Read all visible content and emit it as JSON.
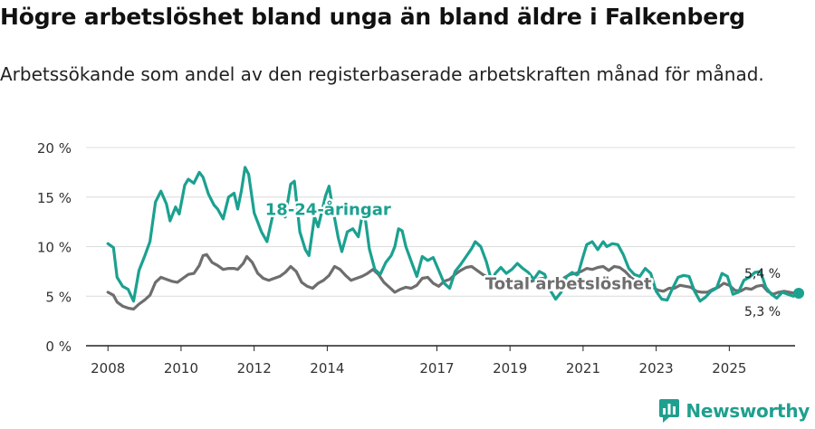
{
  "title": "Högre arbetslöshet bland unga än bland äldre i Falkenberg",
  "subtitle": "Arbetssökande som andel av den registerbaserade arbetskraften månad för månad.",
  "brand": {
    "name": "Newsworthy",
    "icon": "newsworthy-logo-icon",
    "color": "#1f9f8f"
  },
  "chart_data": {
    "type": "line",
    "title": "",
    "xlabel": "",
    "ylabel": "",
    "ylim": [
      0,
      20
    ],
    "xlim": [
      2007.4,
      2026.8
    ],
    "yticks": [
      0,
      5,
      10,
      15,
      20
    ],
    "ytick_labels": [
      "0 %",
      "5 %",
      "10 %",
      "15 %",
      "20 %"
    ],
    "xticks": [
      2008,
      2010,
      2012,
      2014,
      2017,
      2019,
      2021,
      2023,
      2025
    ],
    "xtick_labels": [
      "2008",
      "2010",
      "2012",
      "2014",
      "2017",
      "2019",
      "2021",
      "2023",
      "2025"
    ],
    "grid": "horizontal",
    "series": [
      {
        "name": "18-24-åringar",
        "label": "18-24-åringar",
        "color": "#1ba190",
        "end_label": "5,3 %",
        "points": [
          [
            2008.0,
            10.3
          ],
          [
            2008.15,
            9.9
          ],
          [
            2008.25,
            6.9
          ],
          [
            2008.4,
            6.0
          ],
          [
            2008.55,
            5.7
          ],
          [
            2008.7,
            4.5
          ],
          [
            2008.85,
            7.6
          ],
          [
            2009.0,
            9.0
          ],
          [
            2009.15,
            10.5
          ],
          [
            2009.3,
            14.5
          ],
          [
            2009.45,
            15.6
          ],
          [
            2009.6,
            14.3
          ],
          [
            2009.7,
            12.6
          ],
          [
            2009.85,
            14.0
          ],
          [
            2009.95,
            13.3
          ],
          [
            2010.1,
            16.2
          ],
          [
            2010.2,
            16.8
          ],
          [
            2010.35,
            16.4
          ],
          [
            2010.5,
            17.5
          ],
          [
            2010.6,
            17.0
          ],
          [
            2010.75,
            15.3
          ],
          [
            2010.9,
            14.2
          ],
          [
            2011.0,
            13.8
          ],
          [
            2011.15,
            12.8
          ],
          [
            2011.3,
            15.0
          ],
          [
            2011.45,
            15.4
          ],
          [
            2011.55,
            13.8
          ],
          [
            2011.65,
            15.6
          ],
          [
            2011.75,
            18.0
          ],
          [
            2011.85,
            17.3
          ],
          [
            2012.0,
            13.4
          ],
          [
            2012.2,
            11.5
          ],
          [
            2012.35,
            10.5
          ],
          [
            2012.5,
            13.0
          ],
          [
            2012.6,
            13.4
          ],
          [
            2012.75,
            13.3
          ],
          [
            2012.85,
            13.0
          ],
          [
            2013.0,
            16.3
          ],
          [
            2013.1,
            16.6
          ],
          [
            2013.25,
            11.5
          ],
          [
            2013.4,
            9.7
          ],
          [
            2013.5,
            9.1
          ],
          [
            2013.65,
            13.0
          ],
          [
            2013.75,
            12.0
          ],
          [
            2013.85,
            13.5
          ],
          [
            2013.95,
            15.1
          ],
          [
            2014.05,
            16.1
          ],
          [
            2014.15,
            13.9
          ],
          [
            2014.3,
            10.9
          ],
          [
            2014.4,
            9.5
          ],
          [
            2014.55,
            11.5
          ],
          [
            2014.7,
            11.8
          ],
          [
            2014.85,
            11.0
          ],
          [
            2015.0,
            14.0
          ],
          [
            2015.15,
            9.8
          ],
          [
            2015.3,
            7.7
          ],
          [
            2015.45,
            7.2
          ],
          [
            2015.6,
            8.4
          ],
          [
            2015.75,
            9.1
          ],
          [
            2015.85,
            10.0
          ],
          [
            2015.95,
            11.8
          ],
          [
            2016.05,
            11.6
          ],
          [
            2016.15,
            10.0
          ],
          [
            2016.3,
            8.5
          ],
          [
            2016.45,
            7.0
          ],
          [
            2016.6,
            9.0
          ],
          [
            2016.75,
            8.6
          ],
          [
            2016.9,
            8.9
          ],
          [
            2017.05,
            7.6
          ],
          [
            2017.2,
            6.3
          ],
          [
            2017.35,
            5.8
          ],
          [
            2017.5,
            7.5
          ],
          [
            2017.65,
            8.2
          ],
          [
            2017.8,
            9.0
          ],
          [
            2017.95,
            9.8
          ],
          [
            2018.05,
            10.5
          ],
          [
            2018.2,
            10.0
          ],
          [
            2018.35,
            8.5
          ],
          [
            2018.5,
            6.5
          ],
          [
            2018.6,
            7.3
          ],
          [
            2018.75,
            7.9
          ],
          [
            2018.9,
            7.3
          ],
          [
            2019.05,
            7.7
          ],
          [
            2019.2,
            8.3
          ],
          [
            2019.35,
            7.8
          ],
          [
            2019.5,
            7.4
          ],
          [
            2019.65,
            6.7
          ],
          [
            2019.8,
            7.5
          ],
          [
            2019.95,
            7.2
          ],
          [
            2020.1,
            5.6
          ],
          [
            2020.25,
            4.7
          ],
          [
            2020.4,
            5.4
          ],
          [
            2020.55,
            7.0
          ],
          [
            2020.7,
            7.4
          ],
          [
            2020.85,
            7.1
          ],
          [
            2021.0,
            9.0
          ],
          [
            2021.1,
            10.2
          ],
          [
            2021.25,
            10.5
          ],
          [
            2021.4,
            9.7
          ],
          [
            2021.55,
            10.5
          ],
          [
            2021.65,
            10.0
          ],
          [
            2021.8,
            10.3
          ],
          [
            2021.95,
            10.2
          ],
          [
            2022.1,
            9.2
          ],
          [
            2022.25,
            7.8
          ],
          [
            2022.4,
            7.2
          ],
          [
            2022.55,
            7.0
          ],
          [
            2022.7,
            7.8
          ],
          [
            2022.85,
            7.3
          ],
          [
            2023.0,
            5.5
          ],
          [
            2023.15,
            4.7
          ],
          [
            2023.3,
            4.6
          ],
          [
            2023.45,
            5.8
          ],
          [
            2023.6,
            6.9
          ],
          [
            2023.75,
            7.1
          ],
          [
            2023.9,
            7.0
          ],
          [
            2024.05,
            5.5
          ],
          [
            2024.2,
            4.5
          ],
          [
            2024.35,
            4.9
          ],
          [
            2024.5,
            5.5
          ],
          [
            2024.65,
            5.8
          ],
          [
            2024.8,
            7.3
          ],
          [
            2024.95,
            7.0
          ],
          [
            2025.1,
            5.2
          ],
          [
            2025.25,
            5.4
          ],
          [
            2025.4,
            6.6
          ],
          [
            2025.55,
            6.9
          ],
          [
            2025.7,
            7.4
          ],
          [
            2025.85,
            7.5
          ],
          [
            2026.0,
            5.9
          ],
          [
            2026.15,
            5.2
          ],
          [
            2026.3,
            4.8
          ],
          [
            2026.45,
            5.4
          ],
          [
            2026.6,
            5.2
          ],
          [
            2026.75,
            5.0
          ],
          [
            2026.9,
            5.3
          ]
        ]
      },
      {
        "name": "Total arbetslöshet",
        "label": "Total arbetslöshet",
        "color": "#6e6e6e",
        "end_label": "5,4 %",
        "points": [
          [
            2008.0,
            5.4
          ],
          [
            2008.15,
            5.1
          ],
          [
            2008.25,
            4.4
          ],
          [
            2008.4,
            4.0
          ],
          [
            2008.55,
            3.8
          ],
          [
            2008.7,
            3.7
          ],
          [
            2008.85,
            4.2
          ],
          [
            2009.0,
            4.6
          ],
          [
            2009.15,
            5.1
          ],
          [
            2009.3,
            6.4
          ],
          [
            2009.45,
            6.9
          ],
          [
            2009.6,
            6.7
          ],
          [
            2009.75,
            6.5
          ],
          [
            2009.9,
            6.4
          ],
          [
            2010.05,
            6.8
          ],
          [
            2010.2,
            7.2
          ],
          [
            2010.35,
            7.3
          ],
          [
            2010.5,
            8.1
          ],
          [
            2010.6,
            9.1
          ],
          [
            2010.7,
            9.2
          ],
          [
            2010.85,
            8.4
          ],
          [
            2011.0,
            8.1
          ],
          [
            2011.15,
            7.7
          ],
          [
            2011.3,
            7.8
          ],
          [
            2011.45,
            7.8
          ],
          [
            2011.55,
            7.7
          ],
          [
            2011.7,
            8.3
          ],
          [
            2011.8,
            9.0
          ],
          [
            2011.95,
            8.4
          ],
          [
            2012.1,
            7.3
          ],
          [
            2012.25,
            6.8
          ],
          [
            2012.4,
            6.6
          ],
          [
            2012.55,
            6.8
          ],
          [
            2012.7,
            7.0
          ],
          [
            2012.85,
            7.4
          ],
          [
            2013.0,
            8.0
          ],
          [
            2013.15,
            7.5
          ],
          [
            2013.3,
            6.4
          ],
          [
            2013.45,
            6.0
          ],
          [
            2013.6,
            5.8
          ],
          [
            2013.75,
            6.3
          ],
          [
            2013.9,
            6.6
          ],
          [
            2014.05,
            7.1
          ],
          [
            2014.2,
            8.0
          ],
          [
            2014.35,
            7.7
          ],
          [
            2014.5,
            7.1
          ],
          [
            2014.65,
            6.6
          ],
          [
            2014.8,
            6.8
          ],
          [
            2014.95,
            7.0
          ],
          [
            2015.1,
            7.3
          ],
          [
            2015.25,
            7.7
          ],
          [
            2015.4,
            7.2
          ],
          [
            2015.55,
            6.4
          ],
          [
            2015.7,
            5.9
          ],
          [
            2015.85,
            5.4
          ],
          [
            2016.0,
            5.7
          ],
          [
            2016.15,
            5.9
          ],
          [
            2016.3,
            5.8
          ],
          [
            2016.45,
            6.1
          ],
          [
            2016.6,
            6.8
          ],
          [
            2016.75,
            6.9
          ],
          [
            2016.9,
            6.3
          ],
          [
            2017.05,
            6.0
          ],
          [
            2017.2,
            6.5
          ],
          [
            2017.35,
            6.7
          ],
          [
            2017.5,
            7.2
          ],
          [
            2017.65,
            7.6
          ],
          [
            2017.8,
            7.9
          ],
          [
            2017.95,
            8.0
          ],
          [
            2018.1,
            7.6
          ],
          [
            2018.25,
            7.2
          ],
          [
            2018.4,
            6.9
          ],
          [
            2018.55,
            6.5
          ],
          [
            2018.7,
            6.5
          ],
          [
            2018.85,
            6.5
          ],
          [
            2019.0,
            6.7
          ],
          [
            2019.15,
            6.6
          ],
          [
            2019.3,
            6.6
          ],
          [
            2019.45,
            6.6
          ],
          [
            2019.6,
            6.5
          ],
          [
            2019.75,
            6.7
          ],
          [
            2019.9,
            6.8
          ],
          [
            2020.05,
            6.6
          ],
          [
            2020.2,
            6.4
          ],
          [
            2020.35,
            6.3
          ],
          [
            2020.5,
            6.9
          ],
          [
            2020.65,
            7.2
          ],
          [
            2020.8,
            7.3
          ],
          [
            2020.95,
            7.5
          ],
          [
            2021.1,
            7.8
          ],
          [
            2021.25,
            7.7
          ],
          [
            2021.4,
            7.9
          ],
          [
            2021.55,
            8.0
          ],
          [
            2021.7,
            7.6
          ],
          [
            2021.85,
            8.0
          ],
          [
            2022.0,
            7.9
          ],
          [
            2022.15,
            7.5
          ],
          [
            2022.3,
            6.9
          ],
          [
            2022.45,
            6.5
          ],
          [
            2022.6,
            6.3
          ],
          [
            2022.75,
            6.0
          ],
          [
            2022.9,
            5.9
          ],
          [
            2023.05,
            5.6
          ],
          [
            2023.2,
            5.5
          ],
          [
            2023.35,
            5.8
          ],
          [
            2023.5,
            5.8
          ],
          [
            2023.65,
            6.1
          ],
          [
            2023.8,
            6.0
          ],
          [
            2023.95,
            5.9
          ],
          [
            2024.1,
            5.5
          ],
          [
            2024.25,
            5.4
          ],
          [
            2024.4,
            5.4
          ],
          [
            2024.55,
            5.7
          ],
          [
            2024.7,
            5.9
          ],
          [
            2024.85,
            6.3
          ],
          [
            2025.0,
            6.1
          ],
          [
            2025.15,
            5.6
          ],
          [
            2025.3,
            5.5
          ],
          [
            2025.45,
            5.8
          ],
          [
            2025.6,
            5.7
          ],
          [
            2025.75,
            6.0
          ],
          [
            2025.9,
            6.1
          ],
          [
            2026.05,
            5.5
          ],
          [
            2026.2,
            5.2
          ],
          [
            2026.35,
            5.4
          ],
          [
            2026.5,
            5.5
          ],
          [
            2026.65,
            5.4
          ],
          [
            2026.8,
            5.3
          ],
          [
            2026.9,
            5.4
          ]
        ]
      }
    ]
  }
}
